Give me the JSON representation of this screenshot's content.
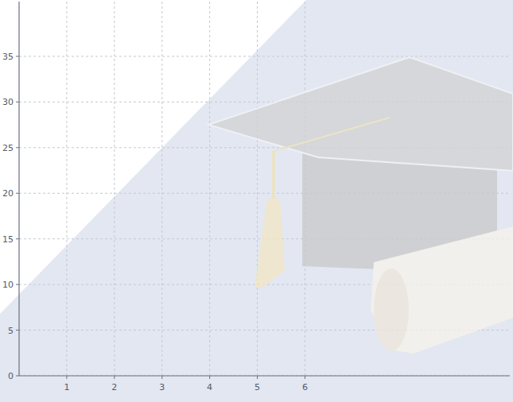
{
  "chart_data": {
    "type": "line",
    "xlim": [
      0,
      10.3
    ],
    "ylim": [
      0,
      41
    ],
    "xticks": [
      1,
      2,
      3,
      4,
      5,
      6
    ],
    "yticks": [
      0,
      5,
      10,
      15,
      20,
      25,
      30,
      35
    ],
    "grid": true,
    "series": []
  }
}
